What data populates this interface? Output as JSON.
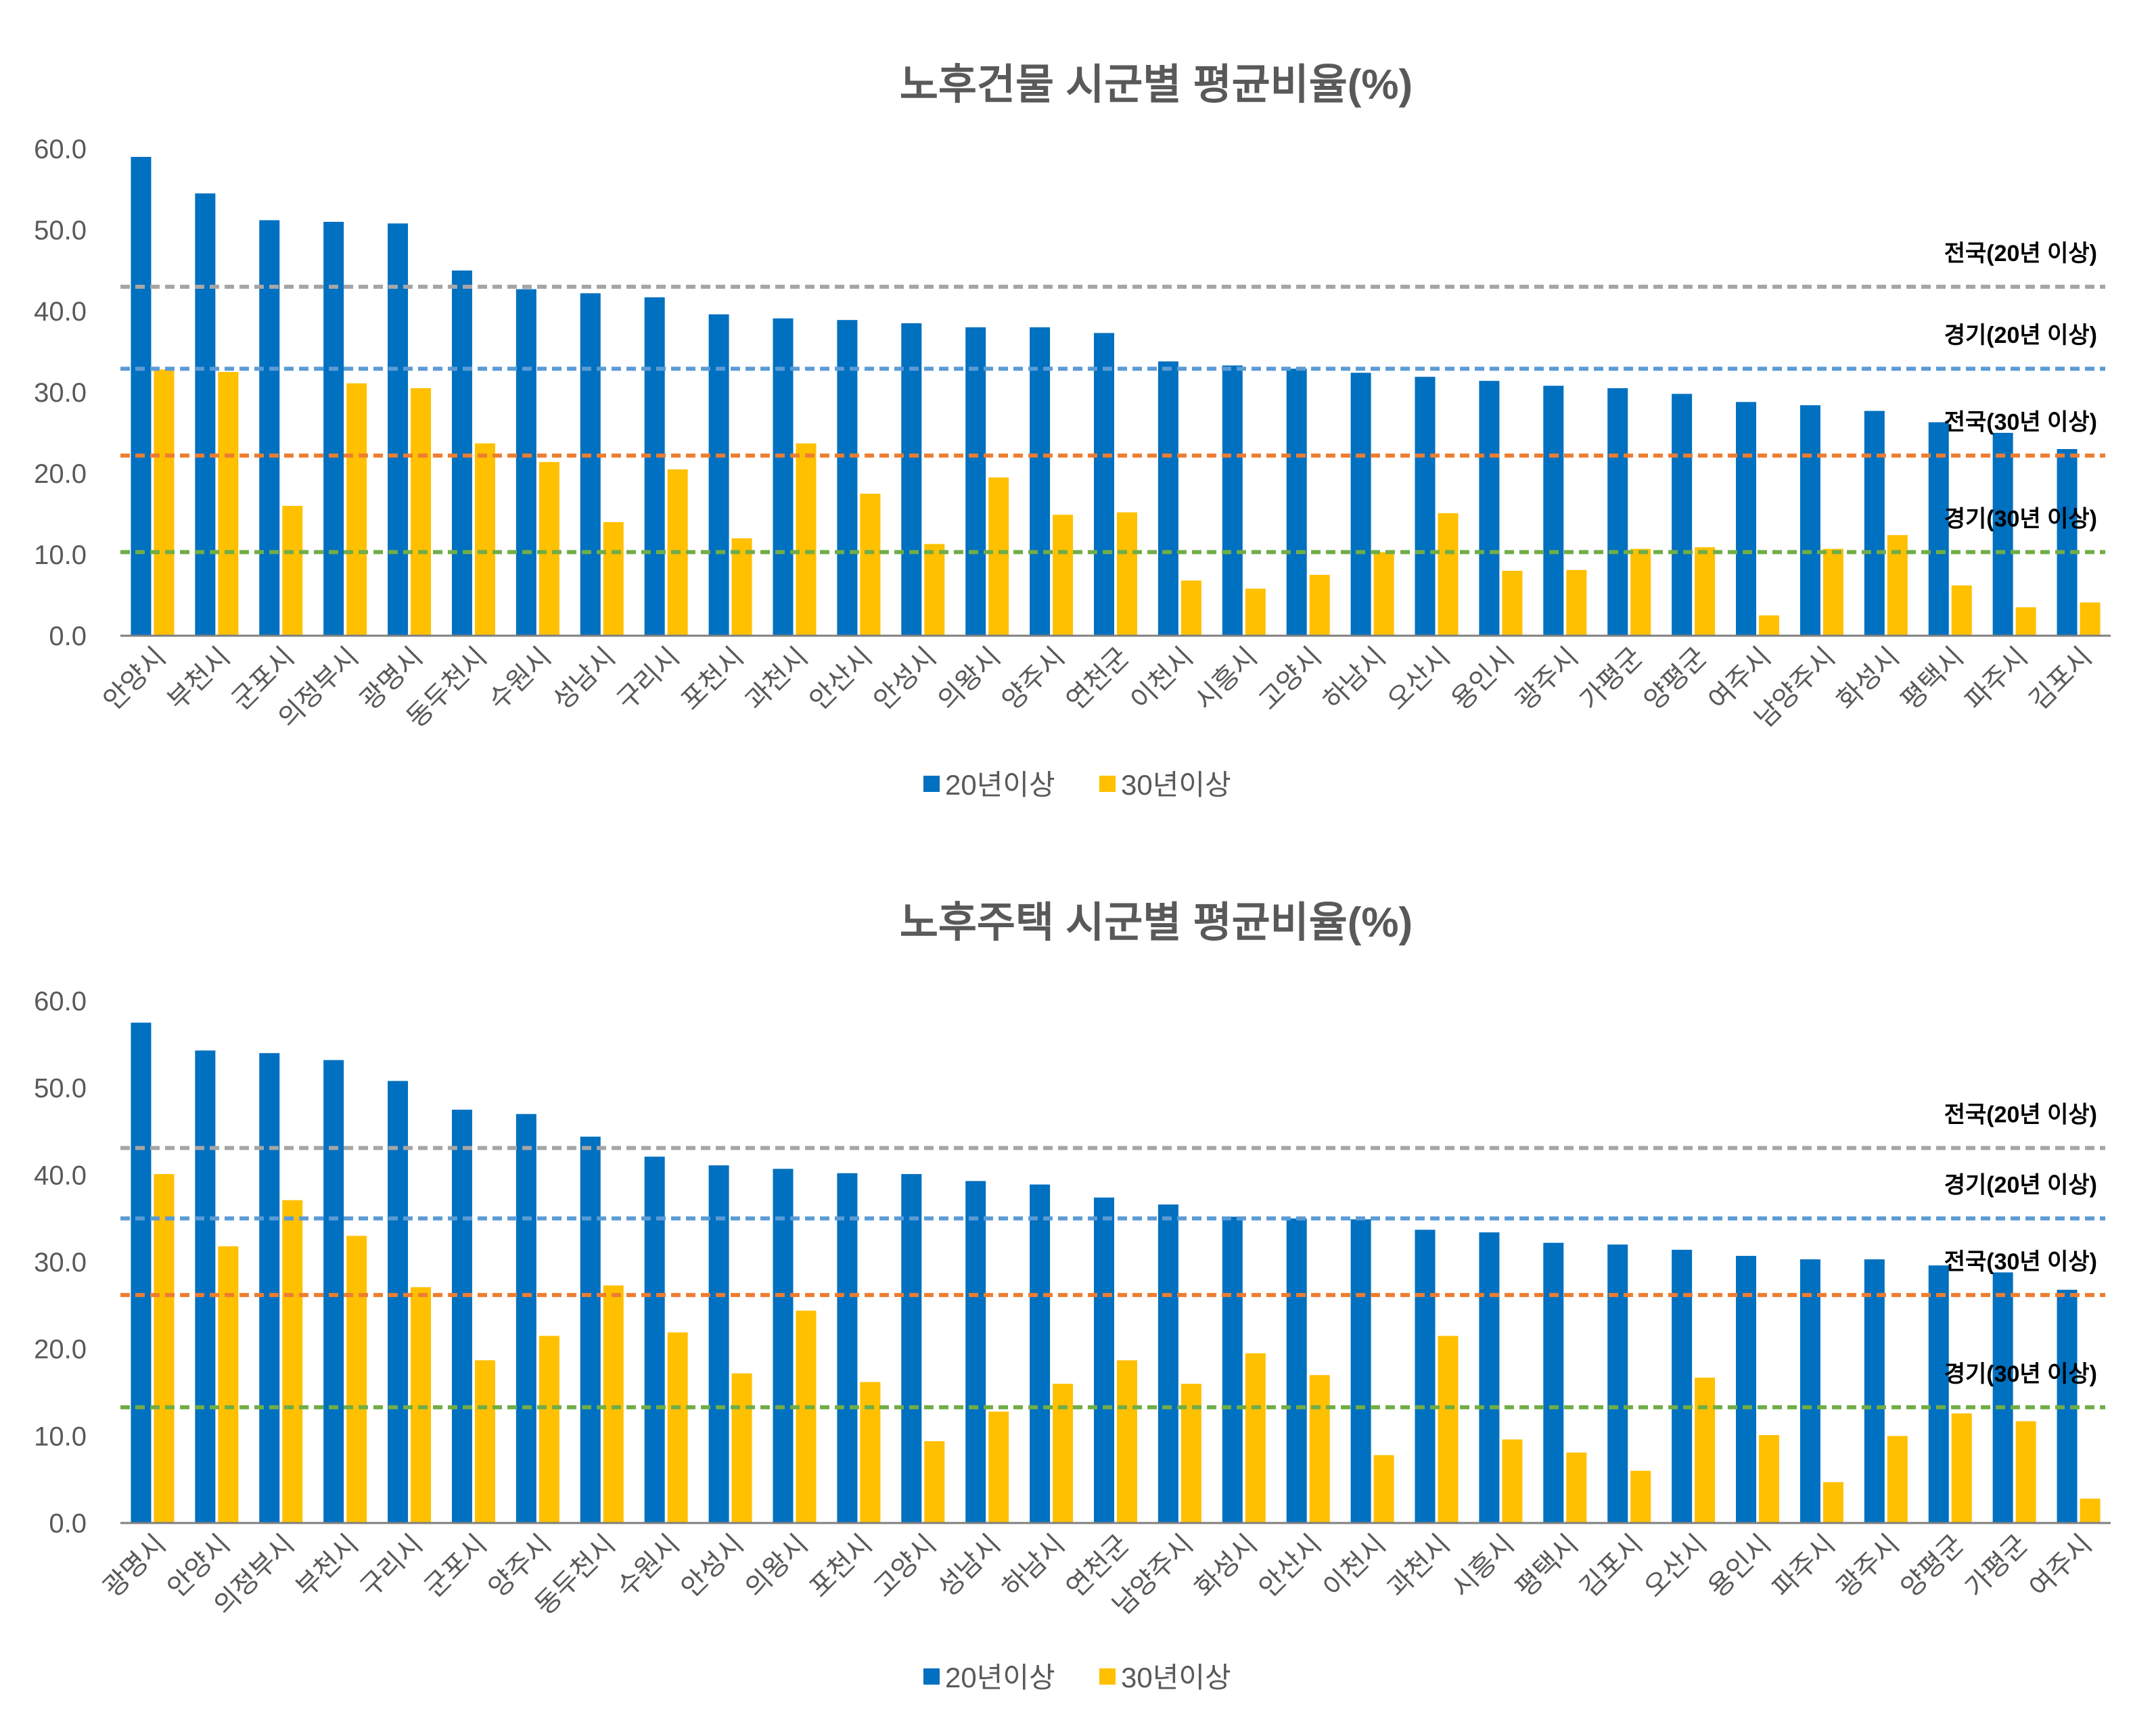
{
  "colors": {
    "series20": "#0070C0",
    "series30": "#FFC000",
    "ref_national20": "#A6A6A6",
    "ref_gyeonggi20": "#5B9BD5",
    "ref_national30": "#ED7D31",
    "ref_gyeonggi30": "#70AD47",
    "title": "#595959",
    "tick": "#595959",
    "axis": "#7f7f7f"
  },
  "chart_data": [
    {
      "type": "bar",
      "title": "노후건물 시군별 평균비율(%)",
      "xlabel": "",
      "ylabel": "",
      "ylim": [
        0,
        60
      ],
      "yticks": [
        "0.0",
        "10.0",
        "20.0",
        "30.0",
        "40.0",
        "50.0",
        "60.0"
      ],
      "legend_position": "bottom",
      "categories": [
        "안양시",
        "부천시",
        "군포시",
        "의정부시",
        "광명시",
        "동두천시",
        "수원시",
        "성남시",
        "구리시",
        "포천시",
        "과천시",
        "안산시",
        "안성시",
        "의왕시",
        "양주시",
        "연천군",
        "이천시",
        "시흥시",
        "고양시",
        "하남시",
        "오산시",
        "용인시",
        "광주시",
        "가평군",
        "양평군",
        "여주시",
        "남양주시",
        "화성시",
        "평택시",
        "파주시",
        "김포시"
      ],
      "series": [
        {
          "name": "20년이상",
          "values": [
            59.0,
            54.5,
            51.2,
            51.0,
            50.8,
            45.0,
            42.7,
            42.2,
            41.7,
            39.6,
            39.1,
            38.9,
            38.5,
            38.0,
            38.0,
            37.3,
            33.8,
            33.3,
            32.9,
            32.4,
            31.9,
            31.4,
            30.8,
            30.5,
            29.8,
            28.8,
            28.4,
            27.7,
            26.3,
            25.0,
            23.0
          ]
        },
        {
          "name": "30년이상",
          "values": [
            32.8,
            32.5,
            16.0,
            31.1,
            30.5,
            23.7,
            21.4,
            14.0,
            20.5,
            12.0,
            23.7,
            17.5,
            11.3,
            19.5,
            14.9,
            15.2,
            6.8,
            5.8,
            7.5,
            10.3,
            15.1,
            8.0,
            8.1,
            10.7,
            10.9,
            2.5,
            10.7,
            12.4,
            6.2,
            3.5,
            4.1
          ]
        }
      ],
      "reference_lines": [
        {
          "label": "전국(20년 이상)",
          "value": 43.0,
          "color_key": "ref_national20"
        },
        {
          "label": "경기(20년 이상)",
          "value": 32.9,
          "color_key": "ref_gyeonggi20"
        },
        {
          "label": "전국(30년 이상)",
          "value": 22.2,
          "color_key": "ref_national30"
        },
        {
          "label": "경기(30년 이상)",
          "value": 10.3,
          "color_key": "ref_gyeonggi30"
        }
      ]
    },
    {
      "type": "bar",
      "title": "노후주택 시군별 평균비율(%)",
      "xlabel": "",
      "ylabel": "",
      "ylim": [
        0,
        60
      ],
      "yticks": [
        "0.0",
        "10.0",
        "20.0",
        "30.0",
        "40.0",
        "50.0",
        "60.0"
      ],
      "legend_position": "bottom",
      "categories": [
        "광명시",
        "안양시",
        "의정부시",
        "부천시",
        "구리시",
        "군포시",
        "양주시",
        "동두천시",
        "수원시",
        "안성시",
        "의왕시",
        "포천시",
        "고양시",
        "성남시",
        "하남시",
        "연천군",
        "남양주시",
        "화성시",
        "안산시",
        "이천시",
        "과천시",
        "시흥시",
        "평택시",
        "김포시",
        "오산시",
        "용인시",
        "파주시",
        "광주시",
        "양평군",
        "가평군",
        "여주시"
      ],
      "series": [
        {
          "name": "20년이상",
          "values": [
            57.5,
            54.3,
            54.0,
            53.2,
            50.8,
            47.5,
            47.0,
            44.4,
            42.1,
            41.1,
            40.7,
            40.2,
            40.1,
            39.3,
            38.9,
            37.4,
            36.6,
            35.2,
            35.0,
            34.9,
            33.7,
            33.4,
            32.2,
            32.0,
            31.4,
            30.7,
            30.3,
            30.3,
            29.6,
            28.8,
            26.8
          ]
        },
        {
          "name": "30년이상",
          "values": [
            40.1,
            31.8,
            37.1,
            33.0,
            27.1,
            18.7,
            21.5,
            27.3,
            21.9,
            17.2,
            24.4,
            16.2,
            9.4,
            12.8,
            16.0,
            18.7,
            16.0,
            19.5,
            17.0,
            7.8,
            21.5,
            9.6,
            8.1,
            6.0,
            16.7,
            10.1,
            4.7,
            10.0,
            12.6,
            11.7,
            2.8
          ]
        }
      ],
      "reference_lines": [
        {
          "label": "전국(20년 이상)",
          "value": 43.1,
          "color_key": "ref_national20"
        },
        {
          "label": "경기(20년 이상)",
          "value": 35.0,
          "color_key": "ref_gyeonggi20"
        },
        {
          "label": "전국(30년 이상)",
          "value": 26.2,
          "color_key": "ref_national30"
        },
        {
          "label": "경기(30년 이상)",
          "value": 13.3,
          "color_key": "ref_gyeonggi30"
        }
      ]
    }
  ]
}
